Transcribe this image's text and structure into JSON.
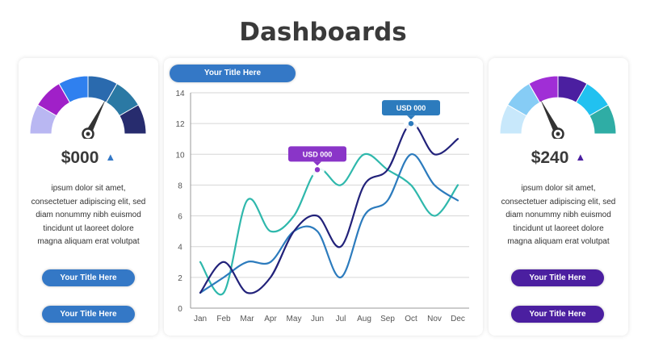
{
  "page_title": "Dashboards",
  "left_panel": {
    "value": "$000",
    "arrow": "▲",
    "arrow_color": "#3478c6",
    "gauge_level": 0.65,
    "gauge_colors": [
      "#b9b7f2",
      "#a020c8",
      "#2f80ef",
      "#2a6aae",
      "#2b79a4",
      "#272c6e"
    ],
    "description": [
      "ipsum dolor sit amet,",
      "consectetuer adipiscing elit, sed",
      "diam nonummy nibh euismod",
      "tincidunt ut laoreet dolore",
      "magna aliquam erat volutpat"
    ],
    "button1": "Your Title Here",
    "button2": "Your Title Here"
  },
  "right_panel": {
    "value": "$240",
    "arrow": "▲",
    "arrow_color": "#4b1fa0",
    "gauge_level": 0.35,
    "gauge_colors": [
      "#c8e8fb",
      "#86ccf5",
      "#a02ed6",
      "#4b1fa0",
      "#21c1f0",
      "#2fada5"
    ],
    "description": [
      "ipsum dolor sit amet,",
      "consectetuer adipiscing elit, sed",
      "diam nonummy nibh euismod",
      "tincidunt ut laoreet dolore",
      "magna aliquam erat volutpat"
    ],
    "button1": "Your Title Here",
    "button2": "Your Title Here"
  },
  "chart_title_button": "Your Title Here",
  "chart_data": {
    "type": "line",
    "x": [
      "Jan",
      "Feb",
      "Mar",
      "Apr",
      "May",
      "Jun",
      "Jul",
      "Aug",
      "Sep",
      "Oct",
      "Nov",
      "Dec"
    ],
    "ylim": [
      0,
      14
    ],
    "yticks": [
      0,
      2,
      4,
      6,
      8,
      10,
      12,
      14
    ],
    "grid": true,
    "series": [
      {
        "color": "#2fb8ac",
        "values": [
          3,
          1,
          7,
          5,
          6,
          9,
          8,
          10,
          9,
          8,
          6,
          8
        ]
      },
      {
        "color": "#2c7bbd",
        "values": [
          1,
          2,
          3,
          3,
          5,
          5,
          2,
          6,
          7,
          10,
          8,
          7
        ]
      },
      {
        "color": "#22227a",
        "values": [
          1,
          3,
          1,
          2,
          5,
          6,
          4,
          8,
          9,
          12,
          10,
          11
        ]
      }
    ],
    "annotations": [
      {
        "label": "USD 000",
        "x": "Jun",
        "y": 9,
        "color": "#8a35c8"
      },
      {
        "label": "USD 000",
        "x": "Oct",
        "y": 12,
        "color": "#2c7bbd"
      }
    ]
  }
}
